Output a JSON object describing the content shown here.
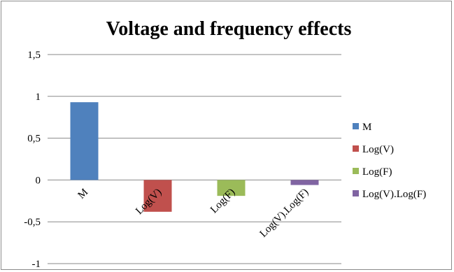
{
  "chart_data": {
    "type": "bar",
    "title": "Voltage and frequency effects",
    "categories": [
      "M",
      "Log(V)",
      "Log(F)",
      "Log(V).Log(F)"
    ],
    "values": [
      0.93,
      -0.38,
      -0.19,
      -0.06
    ],
    "colors": [
      "#4f81bd",
      "#c0504d",
      "#9bbb59",
      "#8064a2"
    ],
    "ylim": [
      -1,
      1.5
    ],
    "yticks": [
      1.5,
      1,
      0.5,
      0,
      -0.5,
      -1
    ],
    "ytick_labels": [
      "1,5",
      "1",
      "0,5",
      "0",
      "-0,5",
      "-1"
    ],
    "grid": true,
    "legend": {
      "position": "right",
      "entries": [
        "M",
        "Log(V)",
        "Log(F)",
        "Log(V).Log(F)"
      ]
    }
  }
}
